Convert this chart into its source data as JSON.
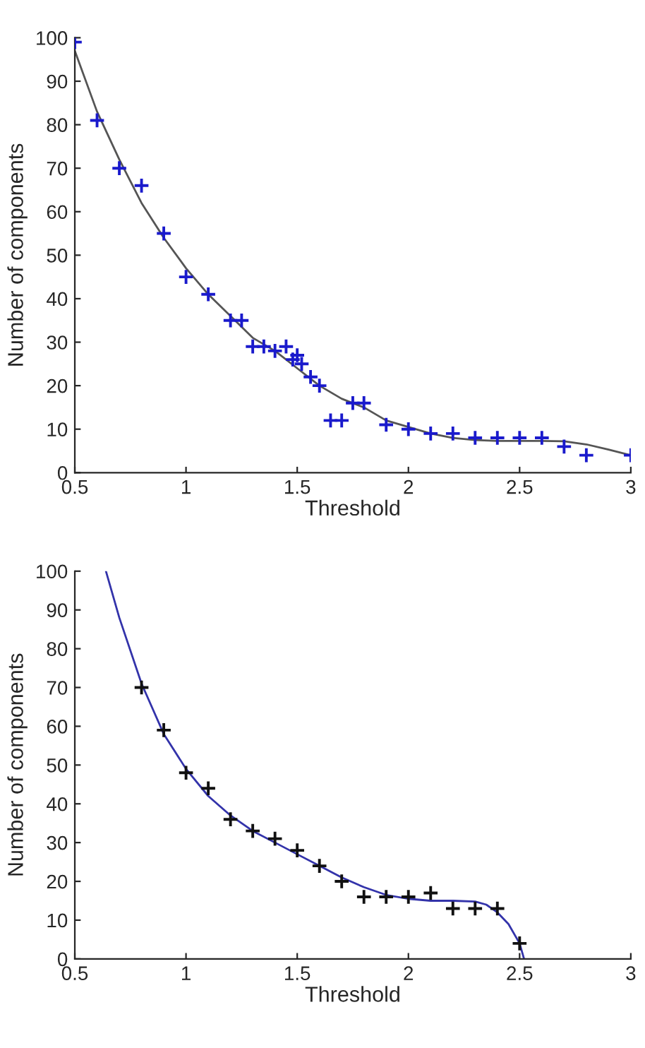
{
  "chart_data": [
    {
      "type": "scatter",
      "xlabel": "Threshold",
      "ylabel": "Number of components",
      "xlim": [
        0.5,
        3
      ],
      "ylim": [
        0,
        100
      ],
      "xticks": [
        0.5,
        1,
        1.5,
        2,
        2.5,
        3
      ],
      "yticks": [
        0,
        10,
        20,
        30,
        40,
        50,
        60,
        70,
        80,
        90,
        100
      ],
      "series": [
        {
          "type": "line",
          "color": "#555555",
          "marker": "none",
          "line_style": "solid",
          "x": [
            0.5,
            0.6,
            0.7,
            0.8,
            0.9,
            1.0,
            1.1,
            1.2,
            1.3,
            1.4,
            1.5,
            1.6,
            1.7,
            1.8,
            1.9,
            2.0,
            2.1,
            2.2,
            2.3,
            2.4,
            2.5,
            2.6,
            2.7,
            2.8,
            2.9,
            3.0
          ],
          "values": [
            97,
            83,
            72,
            62,
            54,
            47,
            41,
            36,
            31,
            28,
            24,
            20,
            17,
            15,
            12,
            10.5,
            9,
            8,
            7.5,
            7.3,
            7.3,
            7.3,
            7.2,
            6.5,
            5.3,
            4
          ]
        },
        {
          "color": "#1a1acc",
          "marker": "cross",
          "x": [
            0.5,
            0.6,
            0.7,
            0.8,
            0.9,
            1.0,
            1.1,
            1.2,
            1.25,
            1.3,
            1.35,
            1.4,
            1.45,
            1.48,
            1.5,
            1.52,
            1.56,
            1.6,
            1.65,
            1.7,
            1.75,
            1.8,
            1.9,
            2.0,
            2.1,
            2.2,
            2.3,
            2.4,
            2.5,
            2.6,
            2.7,
            2.8,
            3.0
          ],
          "values": [
            99,
            81,
            70,
            66,
            55,
            45,
            41,
            35,
            35,
            29,
            29,
            28,
            29,
            26,
            27,
            25,
            22,
            20,
            12,
            12,
            16,
            16,
            11,
            10,
            9,
            9,
            8,
            8,
            8,
            8,
            6,
            4,
            4
          ]
        }
      ]
    },
    {
      "type": "scatter",
      "xlabel": "Threshold",
      "ylabel": "Number of components",
      "xlim": [
        0.5,
        3
      ],
      "ylim": [
        0,
        100
      ],
      "xticks": [
        0.5,
        1,
        1.5,
        2,
        2.5,
        3
      ],
      "yticks": [
        0,
        10,
        20,
        30,
        40,
        50,
        60,
        70,
        80,
        90,
        100
      ],
      "series": [
        {
          "type": "line",
          "color": "#3333aa",
          "marker": "none",
          "line_style": "solid",
          "x": [
            0.64,
            0.7,
            0.8,
            0.9,
            1.0,
            1.1,
            1.2,
            1.3,
            1.4,
            1.5,
            1.6,
            1.7,
            1.8,
            1.9,
            2.0,
            2.1,
            2.2,
            2.3,
            2.35,
            2.4,
            2.45,
            2.5,
            2.52
          ],
          "values": [
            100,
            88,
            71,
            58,
            49,
            42,
            37,
            33,
            30,
            27,
            24,
            21,
            18.5,
            16.5,
            15.5,
            15,
            15,
            14.8,
            14,
            12,
            9,
            4,
            0
          ]
        },
        {
          "color": "#111111",
          "marker": "cross",
          "x": [
            0.8,
            0.9,
            1.0,
            1.1,
            1.2,
            1.3,
            1.4,
            1.5,
            1.6,
            1.7,
            1.8,
            1.9,
            2.0,
            2.1,
            2.2,
            2.3,
            2.4,
            2.5
          ],
          "values": [
            70,
            59,
            48,
            44,
            36,
            33,
            31,
            28,
            24,
            20,
            16,
            16,
            16,
            17,
            13,
            13,
            13,
            4
          ]
        }
      ]
    }
  ]
}
